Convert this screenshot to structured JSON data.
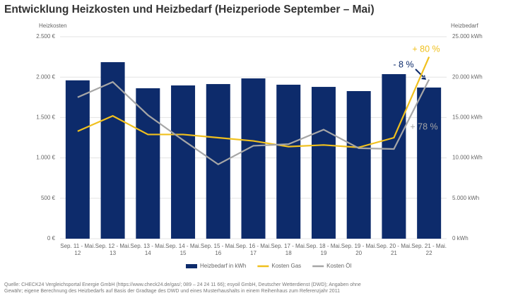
{
  "chart_data": {
    "type": "bar_line",
    "title": "Entwicklung Heizkosten und Heizbedarf (Heizperiode September – Mai)",
    "y_label": "Heizkosten",
    "y2_label": "Heizbedarf",
    "categories": [
      "Sep. 11 - Mai. 12",
      "Sep. 12 - Mai. 13",
      "Sep. 13 - Mai. 14",
      "Sep. 14 - Mai. 15",
      "Sep. 15 - Mai. 16",
      "Sep. 16 - Mai. 17",
      "Sep. 17 - Mai. 18",
      "Sep. 18 - Mai. 19",
      "Sep. 19 - Mai. 20",
      "Sep. 20 - Mai. 21",
      "Sep. 21 - Mai. 22"
    ],
    "series": [
      {
        "name": "Heizbedarf in kWh",
        "type": "bar",
        "axis": "y2",
        "color": "#0d2b6b",
        "values": [
          19600,
          21850,
          18620,
          18970,
          19140,
          19840,
          19060,
          18790,
          18270,
          20370,
          18710
        ]
      },
      {
        "name": "Kosten Gas",
        "type": "line",
        "axis": "y",
        "color": "#f0c01e",
        "values": [
          1330,
          1520,
          1290,
          1290,
          1250,
          1210,
          1140,
          1160,
          1130,
          1250,
          2250
        ]
      },
      {
        "name": "Kosten Öl",
        "type": "line",
        "axis": "y",
        "color": "#a6a6a6",
        "values": [
          1750,
          1940,
          1530,
          1220,
          920,
          1150,
          1170,
          1350,
          1120,
          1110,
          1970
        ]
      }
    ],
    "ylim": [
      0,
      2500
    ],
    "yticks": [
      {
        "value": 0,
        "label": "0 €"
      },
      {
        "value": 500,
        "label": "500 €"
      },
      {
        "value": 1000,
        "label": "1.000 €"
      },
      {
        "value": 1500,
        "label": "1.500 €"
      },
      {
        "value": 2000,
        "label": "2.000 €"
      },
      {
        "value": 2500,
        "label": "2.500 €"
      }
    ],
    "y2lim": [
      0,
      25000
    ],
    "y2ticks": [
      {
        "value": 0,
        "label": "0 kWh"
      },
      {
        "value": 5000,
        "label": "5.000 kWh"
      },
      {
        "value": 10000,
        "label": "10.000 kWh"
      },
      {
        "value": 15000,
        "label": "15.000 kWh"
      },
      {
        "value": 20000,
        "label": "20.000 kWh"
      },
      {
        "value": 25000,
        "label": "25.000 kWh"
      }
    ],
    "grid": true,
    "legend": "bottom",
    "annotations": [
      {
        "text": "+ 80 %",
        "color": "#f0c01e"
      },
      {
        "text": "- 8 %",
        "color": "#0d2b6b"
      },
      {
        "text": "+ 78 %",
        "color": "#a6a6a6"
      }
    ],
    "source": "Quelle: CHECK24 Vergleichsportal Energie GmbH (https://www.check24.de/gas/; 089 – 24 24 11 66); esyoil GmbH, Deutscher Wetterdienst (DWD); Angaben ohne Gewähr; eigene Berechnung des Heizbedarfs auf Basis der Gradtage des DWD und eines Musterhaushalts in einem Reihenhaus zum Referenzjahr 2011"
  }
}
